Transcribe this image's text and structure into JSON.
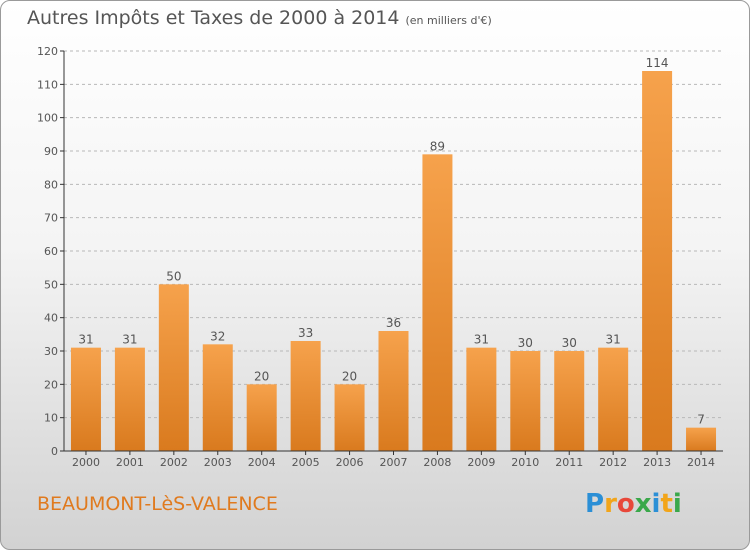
{
  "title": "Autres Impôts et Taxes de 2000 à 2014",
  "unit": "(en milliers d'€)",
  "location": "BEAUMONT-LèS-VALENCE",
  "brand": {
    "letters": [
      "P",
      "r",
      "o",
      "x",
      "i",
      "t",
      "i"
    ],
    "colors": [
      "#2b8fd6",
      "#f2a51a",
      "#e8483a",
      "#3aa84a",
      "#2b8fd6",
      "#f2a51a",
      "#3aa84a"
    ]
  },
  "colors": {
    "bar_top": "#f6a24c",
    "bar_bottom": "#d97a1e",
    "text": "#555555",
    "grid": "#b8b8b8"
  },
  "chart_data": {
    "type": "bar",
    "categories": [
      "2000",
      "2001",
      "2002",
      "2003",
      "2004",
      "2005",
      "2006",
      "2007",
      "2008",
      "2009",
      "2010",
      "2011",
      "2012",
      "2013",
      "2014"
    ],
    "values": [
      31,
      31,
      50,
      32,
      20,
      33,
      20,
      36,
      89,
      31,
      30,
      30,
      31,
      114,
      7
    ],
    "ylim": [
      0,
      120
    ],
    "yticks": [
      0,
      10,
      20,
      30,
      40,
      50,
      60,
      70,
      80,
      90,
      100,
      110,
      120
    ],
    "grid": "horizontal dashed",
    "data_labels": true
  }
}
